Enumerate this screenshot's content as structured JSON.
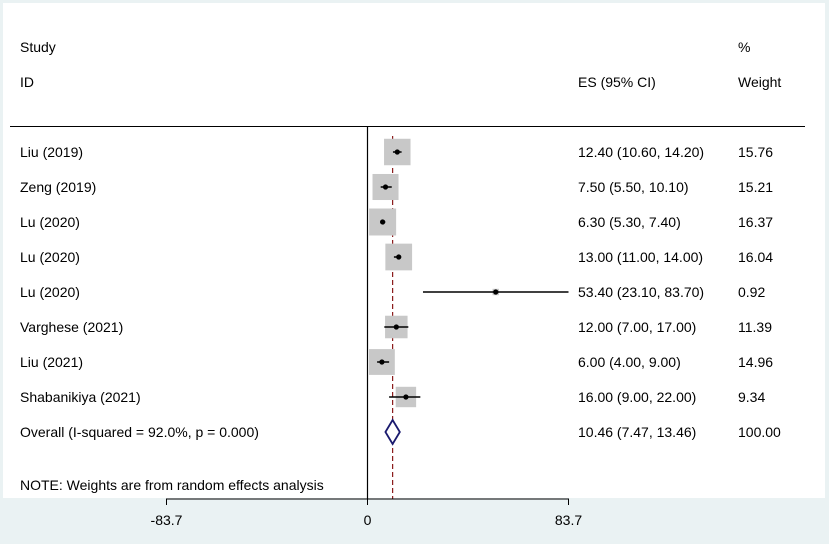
{
  "chart_data": {
    "type": "forest",
    "headers": {
      "study_top": "Study",
      "study_bottom": "ID",
      "es": "ES (95% CI)",
      "weight_top": "%",
      "weight_bottom": "Weight"
    },
    "studies": [
      {
        "id": "Liu (2019)",
        "es": 12.4,
        "lo": 10.6,
        "hi": 14.2,
        "es_text": "12.40 (10.60, 14.20)",
        "weight": "15.76",
        "w": 15.76
      },
      {
        "id": "Zeng (2019)",
        "es": 7.5,
        "lo": 5.5,
        "hi": 10.1,
        "es_text": "7.50 (5.50, 10.10)",
        "weight": "15.21",
        "w": 15.21
      },
      {
        "id": "Lu (2020)",
        "es": 6.3,
        "lo": 5.3,
        "hi": 7.4,
        "es_text": "6.30 (5.30, 7.40)",
        "weight": "16.37",
        "w": 16.37
      },
      {
        "id": "Lu (2020)",
        "es": 13.0,
        "lo": 11.0,
        "hi": 14.0,
        "es_text": "13.00 (11.00, 14.00)",
        "weight": "16.04",
        "w": 16.04
      },
      {
        "id": "Lu (2020)",
        "es": 53.4,
        "lo": 23.1,
        "hi": 83.7,
        "es_text": "53.40 (23.10, 83.70)",
        "weight": "0.92",
        "w": 0.92
      },
      {
        "id": "Varghese (2021)",
        "es": 12.0,
        "lo": 7.0,
        "hi": 17.0,
        "es_text": "12.00 (7.00, 17.00)",
        "weight": "11.39",
        "w": 11.39
      },
      {
        "id": "Liu (2021)",
        "es": 6.0,
        "lo": 4.0,
        "hi": 9.0,
        "es_text": "6.00 (4.00, 9.00)",
        "weight": "14.96",
        "w": 14.96
      },
      {
        "id": "Shabanikiya (2021)",
        "es": 16.0,
        "lo": 9.0,
        "hi": 22.0,
        "es_text": "16.00 (9.00, 22.00)",
        "weight": "9.34",
        "w": 9.34
      }
    ],
    "overall": {
      "label": "Overall  (I-squared = 92.0%, p = 0.000)",
      "es": 10.46,
      "lo": 7.47,
      "hi": 13.46,
      "es_text": "10.46 (7.47, 13.46)",
      "weight": "100.00"
    },
    "note": "NOTE: Weights are from random effects analysis",
    "x_ticks": [
      -83.7,
      0,
      83.7
    ],
    "x_tick_labels": [
      "-83.7",
      "0",
      "83.7"
    ],
    "colors": {
      "background": "#eaf2f3",
      "box": "#c8c8c8",
      "marker": "#000000",
      "diamond": "#1a1a6e",
      "reference_line": "#8b1a1a"
    }
  }
}
